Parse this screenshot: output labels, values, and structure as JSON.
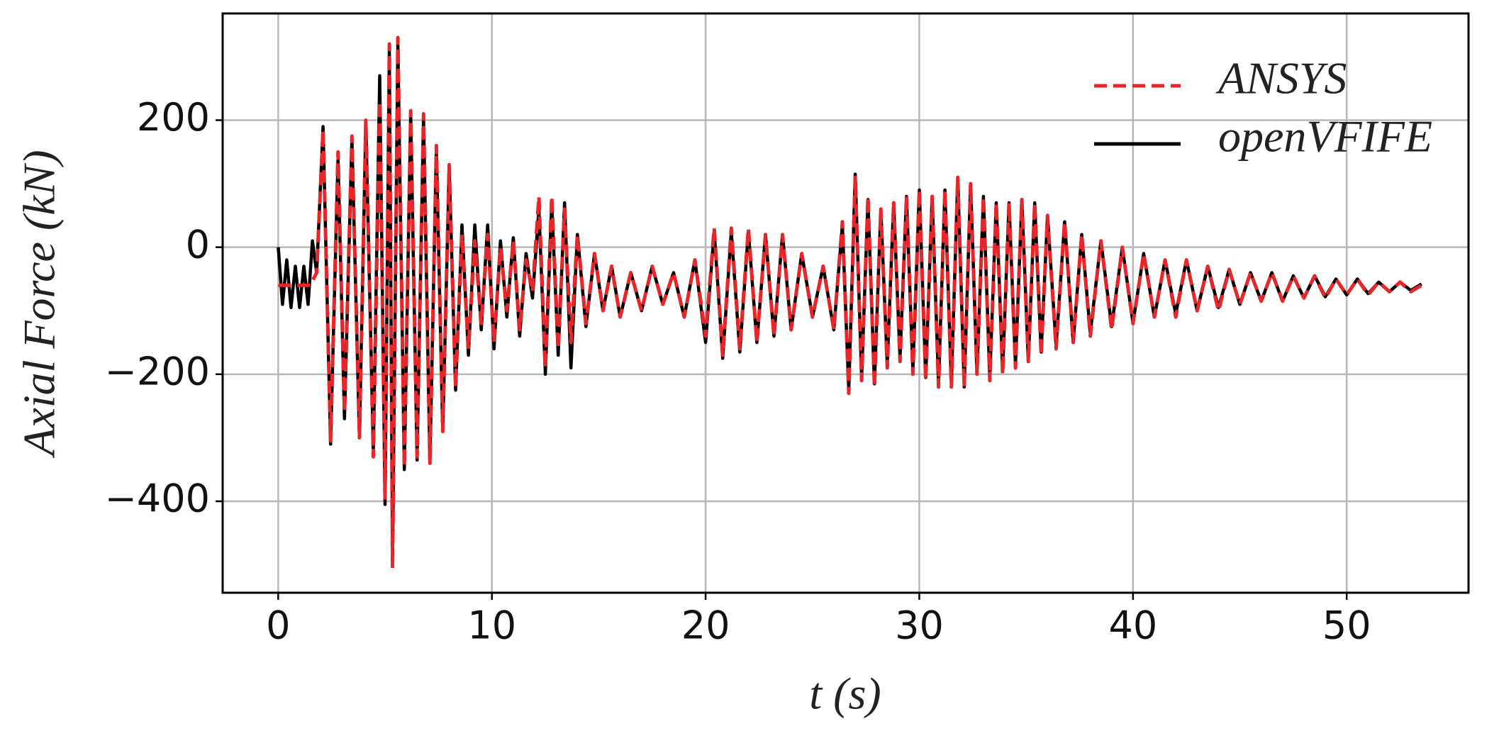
{
  "chart_data": {
    "type": "line",
    "xlabel": "t (s)",
    "ylabel": "Axial Force (kN)",
    "xlim": [
      -2.6,
      55.7
    ],
    "ylim": [
      -544,
      368
    ],
    "xticks": [
      0,
      10,
      20,
      30,
      40,
      50
    ],
    "yticks": [
      {
        "value": -400,
        "label": "−400"
      },
      {
        "value": -200,
        "label": "−200"
      },
      0,
      200
    ],
    "grid": true,
    "legend": "upper right",
    "series": [
      {
        "name": "openVFIFE",
        "color": "#000000",
        "dash": false,
        "x": [
          0,
          0.2,
          0.4,
          0.6,
          0.8,
          1.0,
          1.2,
          1.4,
          1.6,
          1.8,
          2.1,
          2.45,
          2.8,
          3.1,
          3.45,
          3.8,
          4.1,
          4.45,
          4.75,
          5.0,
          5.2,
          5.35,
          5.6,
          5.9,
          6.2,
          6.5,
          6.8,
          7.1,
          7.4,
          7.7,
          8.0,
          8.3,
          8.6,
          8.9,
          9.2,
          9.5,
          9.8,
          10.1,
          10.4,
          10.7,
          11.0,
          11.3,
          11.6,
          11.9,
          12.2,
          12.5,
          12.8,
          13.1,
          13.4,
          13.7,
          14.0,
          14.4,
          14.8,
          15.2,
          15.6,
          16.0,
          16.5,
          17.0,
          17.5,
          18.0,
          18.5,
          19.0,
          19.5,
          20.0,
          20.4,
          20.8,
          21.2,
          21.6,
          22.0,
          22.4,
          22.8,
          23.2,
          23.6,
          24.0,
          24.5,
          25.0,
          25.5,
          26.0,
          26.4,
          26.7,
          27.0,
          27.3,
          27.6,
          27.9,
          28.2,
          28.5,
          28.8,
          29.1,
          29.4,
          29.7,
          30.0,
          30.3,
          30.6,
          30.9,
          31.2,
          31.5,
          31.8,
          32.1,
          32.4,
          32.7,
          33.0,
          33.3,
          33.6,
          33.9,
          34.2,
          34.5,
          34.8,
          35.1,
          35.4,
          35.7,
          36.0,
          36.4,
          36.8,
          37.2,
          37.6,
          38.0,
          38.5,
          39.0,
          39.5,
          40.0,
          40.5,
          41.0,
          41.5,
          42.0,
          42.5,
          43.0,
          43.5,
          44.0,
          44.5,
          45.0,
          45.5,
          46.0,
          46.5,
          47.0,
          47.5,
          48.0,
          48.5,
          49.0,
          49.5,
          50.0,
          50.5,
          51.0,
          51.5,
          52.0,
          52.5,
          53.0,
          53.5
        ],
        "values": [
          0,
          -90,
          -20,
          -95,
          -30,
          -95,
          -30,
          -90,
          10,
          -40,
          190,
          -310,
          140,
          -270,
          170,
          -300,
          195,
          -320,
          270,
          -405,
          310,
          -490,
          320,
          -350,
          210,
          -335,
          205,
          -340,
          155,
          -290,
          125,
          -225,
          35,
          -170,
          35,
          -130,
          35,
          -160,
          10,
          -110,
          15,
          -140,
          -10,
          -80,
          60,
          -200,
          70,
          -170,
          70,
          -190,
          20,
          -125,
          -10,
          -100,
          -30,
          -110,
          -40,
          -100,
          -30,
          -90,
          -40,
          -110,
          -20,
          -150,
          25,
          -175,
          25,
          -165,
          25,
          -150,
          20,
          -140,
          20,
          -130,
          -10,
          -110,
          -30,
          -130,
          35,
          -225,
          115,
          -205,
          75,
          -215,
          60,
          -185,
          70,
          -175,
          80,
          -195,
          90,
          -205,
          80,
          -215,
          90,
          -215,
          110,
          -220,
          100,
          -200,
          80,
          -205,
          70,
          -195,
          70,
          -185,
          75,
          -180,
          70,
          -165,
          50,
          -155,
          40,
          -150,
          20,
          -135,
          10,
          -125,
          0,
          -120,
          -10,
          -110,
          -20,
          -105,
          -20,
          -100,
          -30,
          -95,
          -35,
          -90,
          -40,
          -85,
          -40,
          -85,
          -45,
          -80,
          -45,
          -78,
          -50,
          -75,
          -50,
          -73,
          -55,
          -70,
          -55,
          -68,
          -58
        ]
      },
      {
        "name": "ANSYS",
        "color": "#e8262a",
        "dash": true,
        "x": [
          0,
          0.5,
          1.0,
          1.5,
          1.8,
          2.1,
          2.45,
          2.8,
          3.1,
          3.45,
          3.8,
          4.1,
          4.45,
          4.75,
          5.0,
          5.2,
          5.35,
          5.6,
          5.9,
          6.2,
          6.5,
          6.8,
          7.1,
          7.4,
          7.7,
          8.0,
          8.3,
          8.6,
          8.9,
          9.2,
          9.5,
          9.8,
          10.1,
          10.4,
          10.7,
          11.0,
          11.3,
          11.6,
          11.9,
          12.2,
          12.5,
          12.8,
          13.1,
          13.4,
          13.7,
          14.0,
          14.4,
          14.8,
          15.2,
          15.6,
          16.0,
          16.5,
          17.0,
          17.5,
          18.0,
          18.5,
          19.0,
          19.5,
          20.0,
          20.4,
          20.8,
          21.2,
          21.6,
          22.0,
          22.4,
          22.8,
          23.2,
          23.6,
          24.0,
          24.5,
          25.0,
          25.5,
          26.0,
          26.4,
          26.7,
          27.0,
          27.3,
          27.6,
          27.9,
          28.2,
          28.5,
          28.8,
          29.1,
          29.4,
          29.7,
          30.0,
          30.3,
          30.6,
          30.9,
          31.2,
          31.5,
          31.8,
          32.1,
          32.4,
          32.7,
          33.0,
          33.3,
          33.6,
          33.9,
          34.2,
          34.5,
          34.8,
          35.1,
          35.4,
          35.7,
          36.0,
          36.4,
          36.8,
          37.2,
          37.6,
          38.0,
          38.5,
          39.0,
          39.5,
          40.0,
          40.5,
          41.0,
          41.5,
          42.0,
          42.5,
          43.0,
          43.5,
          44.0,
          44.5,
          45.0,
          45.5,
          46.0,
          46.5,
          47.0,
          47.5,
          48.0,
          48.5,
          49.0,
          49.5,
          50.0,
          50.5,
          51.0,
          51.5,
          52.0,
          52.5,
          53.0,
          53.5
        ],
        "values": [
          -60,
          -60,
          -60,
          -60,
          -40,
          185,
          -305,
          150,
          -260,
          175,
          -300,
          200,
          -330,
          230,
          -395,
          320,
          -505,
          330,
          -345,
          215,
          -330,
          210,
          -340,
          160,
          -290,
          130,
          -220,
          20,
          -160,
          10,
          -120,
          20,
          -150,
          0,
          -100,
          10,
          -130,
          -20,
          -70,
          80,
          -190,
          80,
          -160,
          60,
          -150,
          20,
          -120,
          -10,
          -100,
          -30,
          -110,
          -40,
          -100,
          -30,
          -90,
          -40,
          -110,
          -20,
          -140,
          30,
          -170,
          30,
          -160,
          30,
          -150,
          20,
          -140,
          20,
          -130,
          -10,
          -110,
          -30,
          -130,
          40,
          -230,
          110,
          -210,
          80,
          -220,
          60,
          -190,
          70,
          -180,
          80,
          -200,
          90,
          -210,
          80,
          -220,
          90,
          -220,
          110,
          -220,
          100,
          -200,
          80,
          -210,
          70,
          -200,
          70,
          -190,
          75,
          -180,
          70,
          -170,
          50,
          -160,
          40,
          -150,
          20,
          -140,
          10,
          -130,
          0,
          -120,
          -10,
          -110,
          -20,
          -110,
          -20,
          -100,
          -30,
          -100,
          -35,
          -90,
          -40,
          -85,
          -40,
          -85,
          -45,
          -80,
          -45,
          -80,
          -50,
          -75,
          -50,
          -75,
          -55,
          -70,
          -55,
          -70,
          -60
        ]
      }
    ]
  }
}
